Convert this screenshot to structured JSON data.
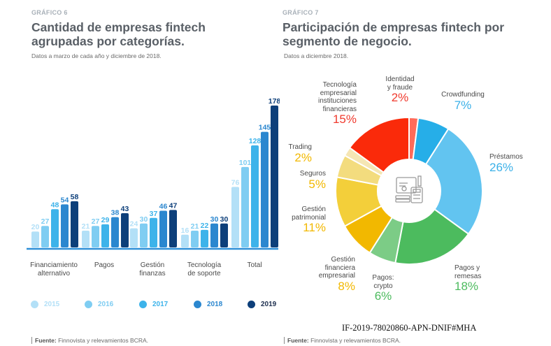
{
  "left": {
    "eyebrow": "GRÁFICO 6",
    "title_line1": "Cantidad de empresas fintech",
    "title_line2": "agrupadas por categorías.",
    "subtitle": "Datos a marzo de cada año y diciembre de 2018.",
    "source_bold": "Fuente:",
    "source_text": " Finnovista y relevamientos BCRA."
  },
  "right": {
    "eyebrow": "GRÁFICO 7",
    "title_line1": "Participación de empresas fintech por",
    "title_line2": "segmento de negocio.",
    "subtitle": "Datos a diciembre 2018.",
    "source_bold": "Fuente:",
    "source_text": " Finnovista y relevamientos BCRA."
  },
  "doc_id": "IF-2019-78020860-APN-DNIF#MHA",
  "chart_data": [
    {
      "type": "bar",
      "title": "Cantidad de empresas fintech agrupadas por categorías.",
      "categories": [
        [
          "Financiamiento",
          "alternativo"
        ],
        [
          "Pagos"
        ],
        [
          "Gestión",
          "finanzas"
        ],
        [
          "Tecnología",
          "de soporte"
        ],
        [
          "Total"
        ]
      ],
      "series": [
        {
          "name": "2015",
          "color": "#b3e0f7",
          "values": [
            20,
            21,
            24,
            16,
            76
          ]
        },
        {
          "name": "2016",
          "color": "#7fcdf2",
          "values": [
            27,
            27,
            30,
            21,
            101
          ]
        },
        {
          "name": "2017",
          "color": "#3db3ea",
          "values": [
            48,
            29,
            37,
            22,
            128
          ]
        },
        {
          "name": "2018",
          "color": "#2b87cf",
          "values": [
            54,
            38,
            46,
            30,
            145
          ]
        },
        {
          "name": "2019",
          "color": "#0d3f7a",
          "values": [
            58,
            43,
            47,
            30,
            178
          ]
        }
      ],
      "legend": "bottom",
      "grid": false
    },
    {
      "type": "pie",
      "title": "Participación de empresas fintech por segmento de negocio.",
      "slices": [
        {
          "label": [
            "Identidad",
            "y fraude"
          ],
          "pct_text": "2%",
          "value": 2,
          "color": "#ff6b5a",
          "text_color": "#f03a2e"
        },
        {
          "label": [
            "Crowdfunding"
          ],
          "pct_text": "7%",
          "value": 7,
          "color": "#26aee8",
          "text_color": "#3ab0e8"
        },
        {
          "label": [
            "Préstamos"
          ],
          "pct_text": "26%",
          "value": 26,
          "color": "#62c4f0",
          "text_color": "#3ab0e8"
        },
        {
          "label": [
            "Pagos y",
            "remesas"
          ],
          "pct_text": "18%",
          "value": 18,
          "color": "#4cbb5e",
          "text_color": "#4cbb5e"
        },
        {
          "label": [
            "Pagos:",
            "crypto"
          ],
          "pct_text": "6%",
          "value": 6,
          "color": "#7ccc86",
          "text_color": "#4cbb5e"
        },
        {
          "label": [
            "Gestión",
            "financiera",
            "empresarial"
          ],
          "pct_text": "8%",
          "value": 8,
          "color": "#f2b800",
          "text_color": "#f2b800"
        },
        {
          "label": [
            "Gestión",
            "patrimonial"
          ],
          "pct_text": "11%",
          "value": 11,
          "color": "#f3cf3a",
          "text_color": "#f2b800"
        },
        {
          "label": [
            "Seguros"
          ],
          "pct_text": "5%",
          "value": 5,
          "color": "#f3dc7e",
          "text_color": "#f2b800"
        },
        {
          "label": [
            "Trading"
          ],
          "pct_text": "2%",
          "value": 2,
          "color": "#f5e6b4",
          "text_color": "#f2b800"
        },
        {
          "label": [
            "Tecnología",
            "empresarial",
            "instituciones",
            "financieras"
          ],
          "pct_text": "15%",
          "value": 15,
          "color": "#fa2a0a",
          "text_color": "#f03a2e"
        }
      ],
      "center_icon": "finance-calculator-icon"
    }
  ]
}
